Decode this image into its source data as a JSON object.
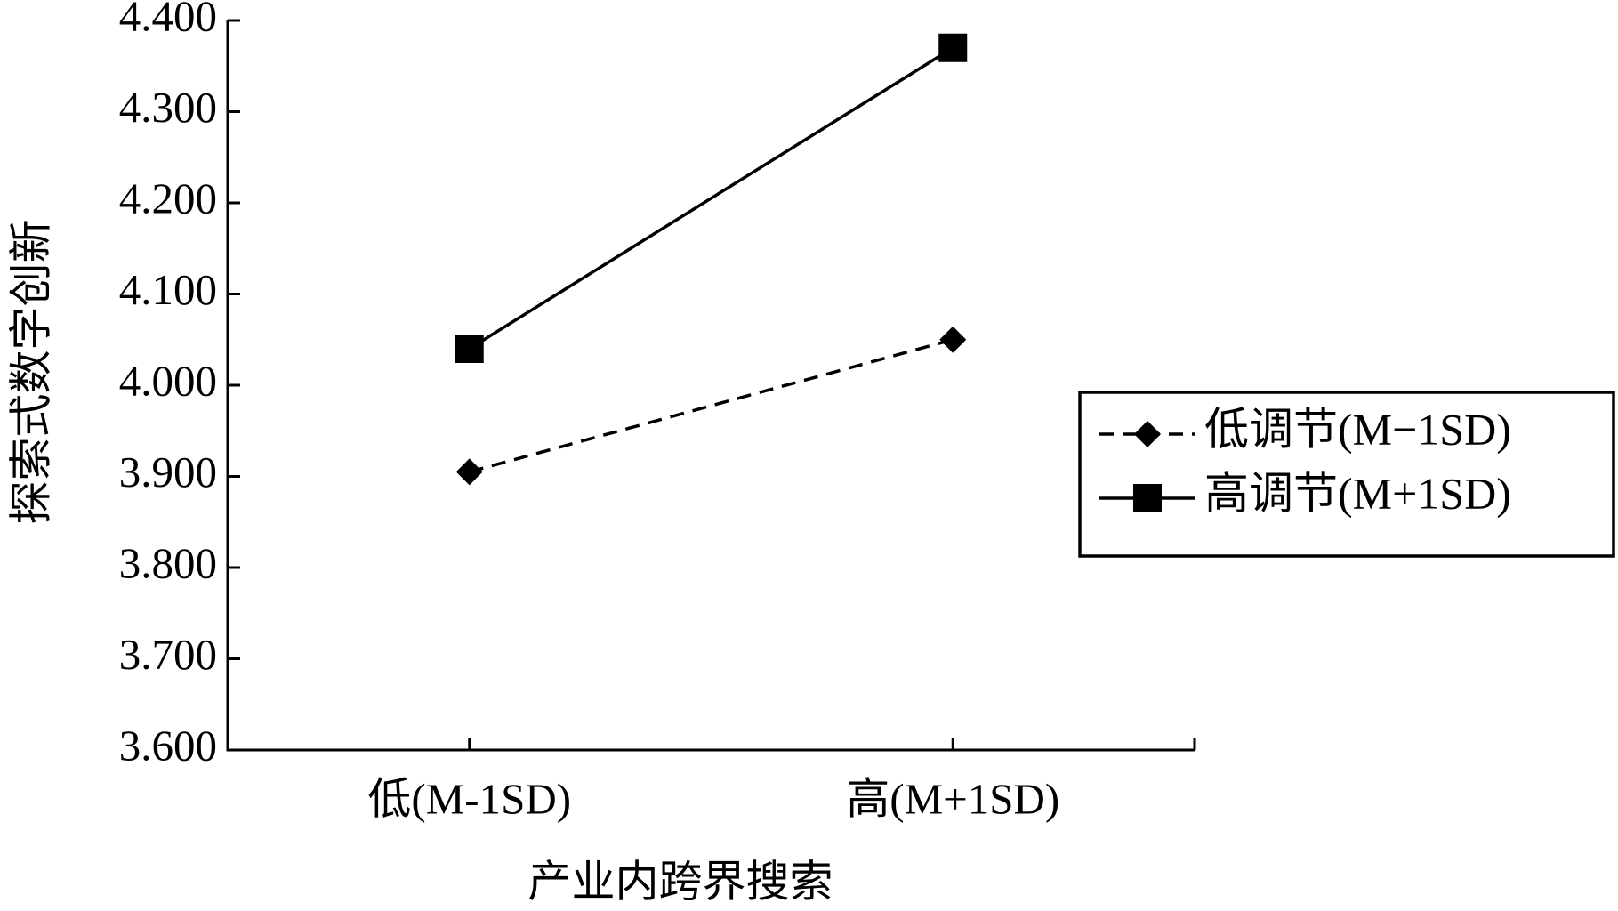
{
  "chart_data": {
    "type": "line",
    "x_label": "产业内跨界搜索",
    "y_label": "探索式数字创新",
    "categories": [
      "低(M-1SD)",
      "高(M+1SD)"
    ],
    "series": [
      {
        "name": "低调节(M−1SD)",
        "color": "#000000",
        "line_style": "dashed",
        "marker": "diamond",
        "values": [
          3.905,
          4.05
        ]
      },
      {
        "name": "高调节(M+1SD)",
        "color": "#000000",
        "line_style": "solid",
        "marker": "square",
        "values": [
          4.04,
          4.37
        ]
      }
    ],
    "ylim": [
      3.6,
      4.4
    ],
    "yticks": [
      {
        "value": 3.6,
        "label": "3.600"
      },
      {
        "value": 3.7,
        "label": "3.700"
      },
      {
        "value": 3.8,
        "label": "3.800"
      },
      {
        "value": 3.9,
        "label": "3.900"
      },
      {
        "value": 4.0,
        "label": "4.000"
      },
      {
        "value": 4.1,
        "label": "4.100"
      },
      {
        "value": 4.2,
        "label": "4.200"
      },
      {
        "value": 4.3,
        "label": "4.300"
      },
      {
        "value": 4.4,
        "label": "4.400"
      }
    ],
    "grid": false,
    "legend": "right"
  }
}
